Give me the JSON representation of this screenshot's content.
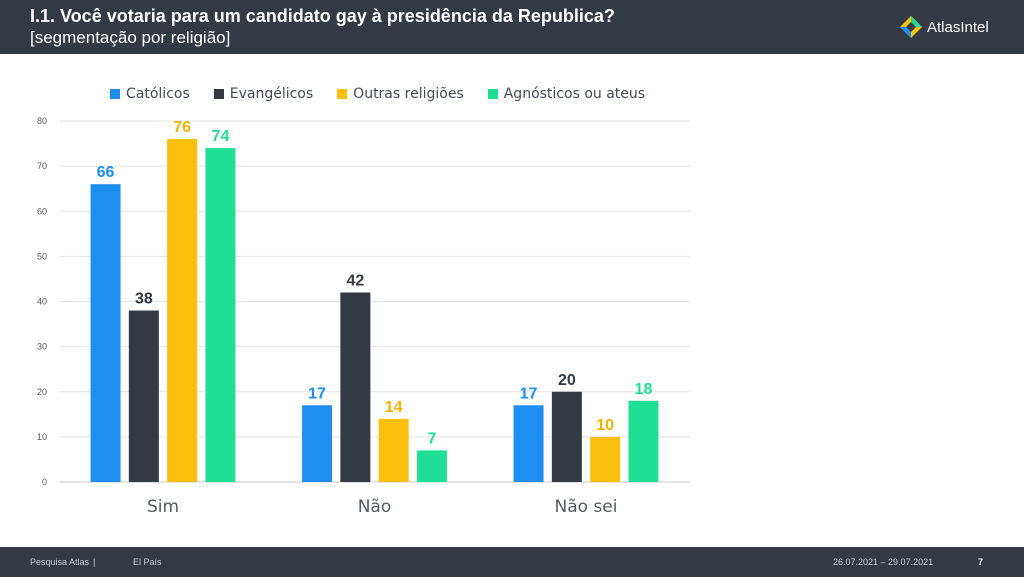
{
  "header": {
    "title": "I.1. Você votaria para um candidato gay à presidência da Republica?",
    "subtitle": "[segmentação por religião]",
    "logo_text": "AtlasIntel",
    "logo_icon": "atlas-diamond-icon"
  },
  "footer": {
    "source": "Pesquisa Atlas",
    "separator": "|",
    "partner": "El País",
    "date_range": "26.07.2021 – 29.07.2021",
    "page_number": "7"
  },
  "chart_data": {
    "type": "bar",
    "title": "",
    "xlabel": "",
    "ylabel": "",
    "categories": [
      "Sim",
      "Não",
      "Não sei"
    ],
    "series": [
      {
        "name": "Católicos",
        "color": "#1f8ef1",
        "values": [
          66,
          17,
          17
        ]
      },
      {
        "name": "Evangélicos",
        "color": "#333a44",
        "values": [
          38,
          42,
          20
        ]
      },
      {
        "name": "Outras religiões",
        "color": "#fbbf0e",
        "values": [
          76,
          14,
          10
        ]
      },
      {
        "name": "Agnósticos ou ateus",
        "color": "#1fdf96",
        "values": [
          74,
          7,
          18
        ]
      }
    ],
    "ylim": [
      0,
      80
    ],
    "yticks": [
      0,
      10,
      20,
      30,
      40,
      50,
      60,
      70,
      80
    ],
    "grid": true,
    "legend": "top-left",
    "label_colors": [
      "#1f8ef1",
      "#333a44",
      "#f0b400",
      "#1fdf96"
    ]
  }
}
